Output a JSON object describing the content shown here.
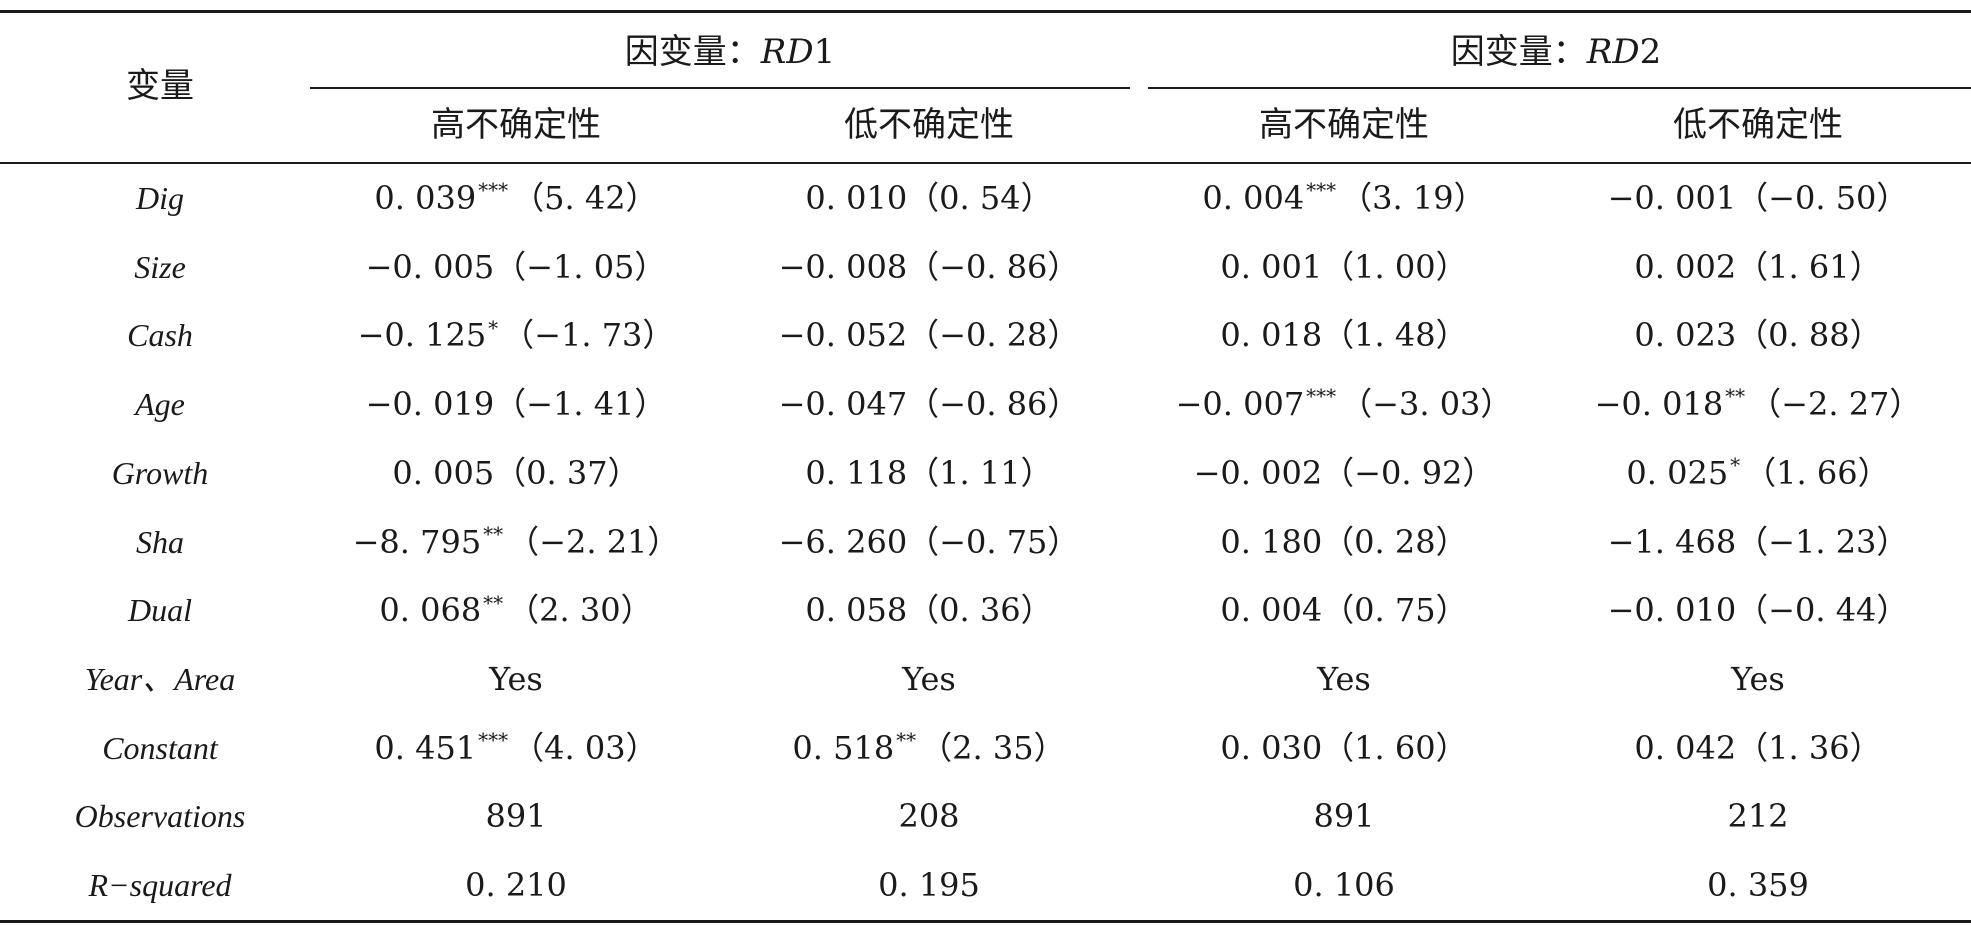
{
  "header": {
    "variable_label": "变量",
    "groups": [
      {
        "prefix": "因变量：",
        "dep_var": "RD",
        "dep_num": "1"
      },
      {
        "prefix": "因变量：",
        "dep_var": "RD",
        "dep_num": "2"
      }
    ],
    "subheaders": [
      "高不确定性",
      "低不确定性",
      "高不确定性",
      "低不确定性"
    ]
  },
  "rows": [
    {
      "var": "Dig",
      "cells": [
        {
          "coef": "0. 039",
          "stars": "***",
          "t": "（5. 42）"
        },
        {
          "coef": "0. 010",
          "stars": "",
          "t": "（0. 54）"
        },
        {
          "coef": "0. 004",
          "stars": "***",
          "t": "（3. 19）"
        },
        {
          "coef": "−0. 001",
          "stars": "",
          "t": "（−0. 50）"
        }
      ]
    },
    {
      "var": "Size",
      "cells": [
        {
          "coef": "−0. 005",
          "stars": "",
          "t": "（−1. 05）"
        },
        {
          "coef": "−0. 008",
          "stars": "",
          "t": "（−0. 86）"
        },
        {
          "coef": "0. 001",
          "stars": "",
          "t": "（1. 00）"
        },
        {
          "coef": "0. 002",
          "stars": "",
          "t": "（1. 61）"
        }
      ]
    },
    {
      "var": "Cash",
      "cells": [
        {
          "coef": "−0. 125",
          "stars": "*",
          "t": "（−1. 73）"
        },
        {
          "coef": "−0. 052",
          "stars": "",
          "t": "（−0. 28）"
        },
        {
          "coef": "0. 018",
          "stars": "",
          "t": "（1. 48）"
        },
        {
          "coef": "0. 023",
          "stars": "",
          "t": "（0. 88）"
        }
      ]
    },
    {
      "var": "Age",
      "cells": [
        {
          "coef": "−0. 019",
          "stars": "",
          "t": "（−1. 41）"
        },
        {
          "coef": "−0. 047",
          "stars": "",
          "t": "（−0. 86）"
        },
        {
          "coef": "−0. 007",
          "stars": "***",
          "t": "（−3. 03）"
        },
        {
          "coef": "−0. 018",
          "stars": "**",
          "t": "（−2. 27）"
        }
      ]
    },
    {
      "var": "Growth",
      "cells": [
        {
          "coef": "0. 005",
          "stars": "",
          "t": "（0. 37）"
        },
        {
          "coef": "0. 118",
          "stars": "",
          "t": "（1. 11）"
        },
        {
          "coef": "−0. 002",
          "stars": "",
          "t": "（−0. 92）"
        },
        {
          "coef": "0. 025",
          "stars": "*",
          "t": "（1. 66）"
        }
      ]
    },
    {
      "var": "Sha",
      "cells": [
        {
          "coef": "−8. 795",
          "stars": "**",
          "t": "（−2. 21）"
        },
        {
          "coef": "−6. 260",
          "stars": "",
          "t": "（−0. 75）"
        },
        {
          "coef": "0. 180",
          "stars": "",
          "t": "（0. 28）"
        },
        {
          "coef": "−1. 468",
          "stars": "",
          "t": "（−1. 23）"
        }
      ]
    },
    {
      "var": "Dual",
      "cells": [
        {
          "coef": "0. 068",
          "stars": "**",
          "t": "（2. 30）"
        },
        {
          "coef": "0. 058",
          "stars": "",
          "t": "（0. 36）"
        },
        {
          "coef": "0. 004",
          "stars": "",
          "t": "（0. 75）"
        },
        {
          "coef": "−0. 010",
          "stars": "",
          "t": "（−0. 44）"
        }
      ]
    },
    {
      "var": "Year、Area",
      "cells": [
        {
          "coef": "Yes",
          "stars": "",
          "t": ""
        },
        {
          "coef": "Yes",
          "stars": "",
          "t": ""
        },
        {
          "coef": "Yes",
          "stars": "",
          "t": ""
        },
        {
          "coef": "Yes",
          "stars": "",
          "t": ""
        }
      ]
    },
    {
      "var": "Constant",
      "cells": [
        {
          "coef": "0. 451",
          "stars": "***",
          "t": "（4. 03）"
        },
        {
          "coef": "0. 518",
          "stars": "**",
          "t": "（2. 35）"
        },
        {
          "coef": "0. 030",
          "stars": "",
          "t": "（1. 60）"
        },
        {
          "coef": "0. 042",
          "stars": "",
          "t": "（1. 36）"
        }
      ]
    },
    {
      "var": "Observations",
      "cells": [
        {
          "coef": "891",
          "stars": "",
          "t": ""
        },
        {
          "coef": "208",
          "stars": "",
          "t": ""
        },
        {
          "coef": "891",
          "stars": "",
          "t": ""
        },
        {
          "coef": "212",
          "stars": "",
          "t": ""
        }
      ]
    },
    {
      "var": "R−squared",
      "cells": [
        {
          "coef": "0. 210",
          "stars": "",
          "t": ""
        },
        {
          "coef": "0. 195",
          "stars": "",
          "t": ""
        },
        {
          "coef": "0. 106",
          "stars": "",
          "t": ""
        },
        {
          "coef": "0. 359",
          "stars": "",
          "t": ""
        }
      ]
    }
  ]
}
